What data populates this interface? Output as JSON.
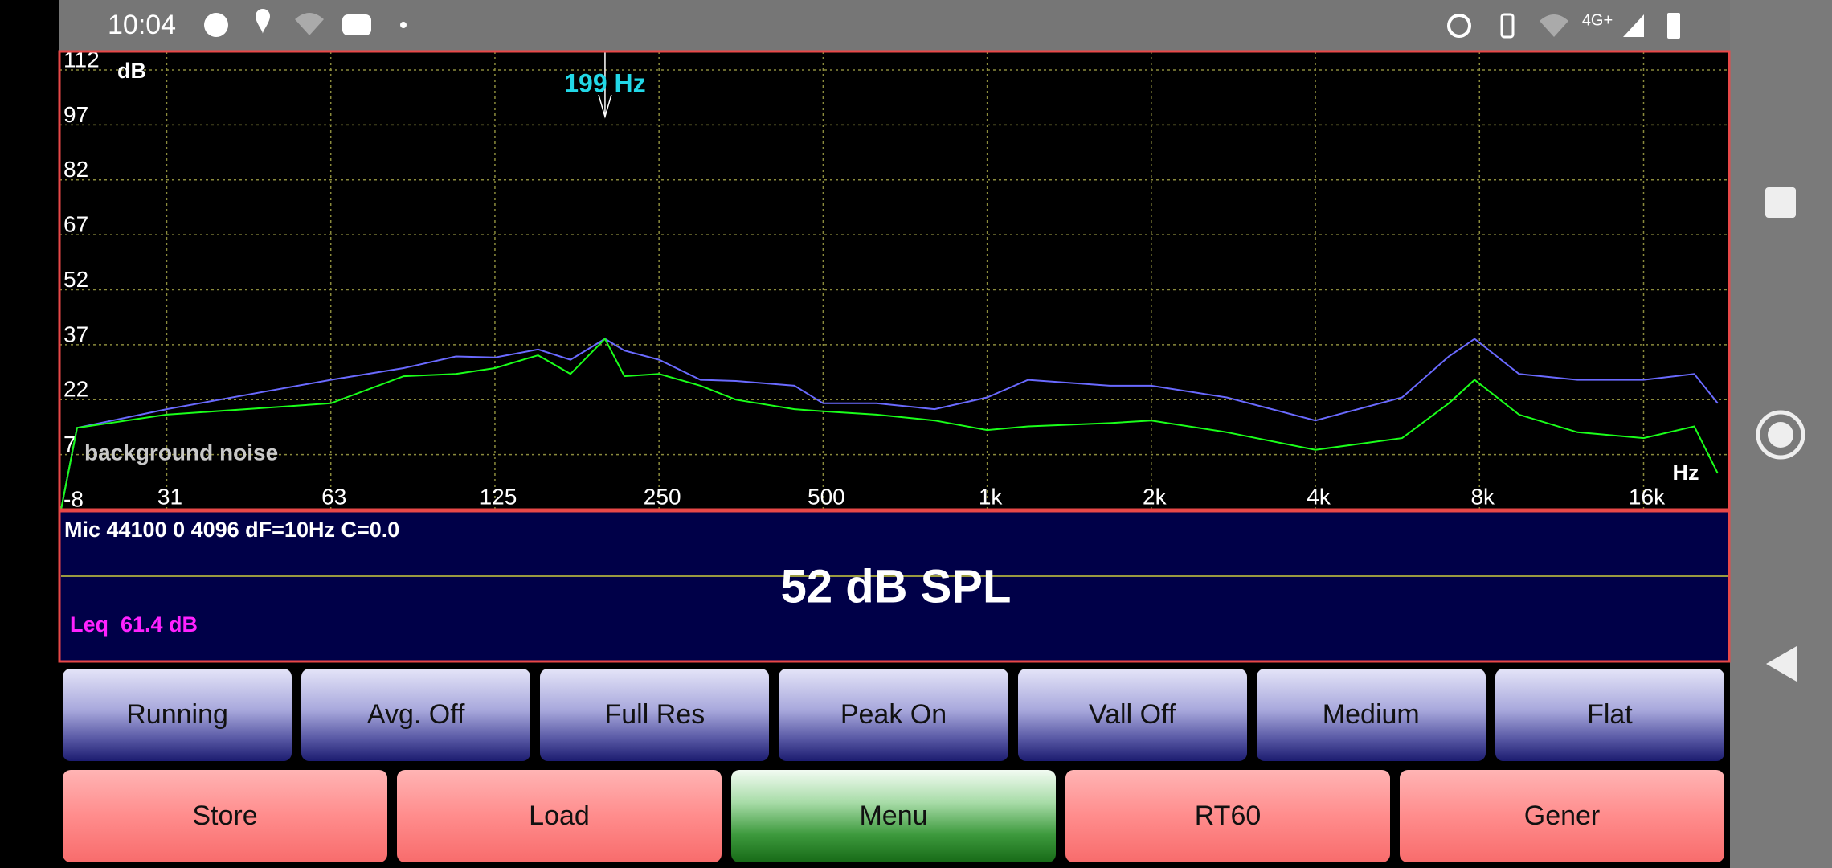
{
  "status_bar": {
    "time": "10:04",
    "network": "4G+"
  },
  "chart_data": {
    "type": "line",
    "x_scale": "log",
    "grid": true,
    "y_unit": "dB",
    "x_unit": "Hz",
    "annotation": "199 Hz",
    "marker_x": 199,
    "note": "background noise",
    "xlim": [
      20,
      22050
    ],
    "ylim": [
      -8,
      112
    ],
    "yticks": [
      112,
      97,
      82,
      67,
      52,
      37,
      22,
      7,
      -8
    ],
    "xticks": [
      {
        "value": 31.25,
        "label": "31"
      },
      {
        "value": 62.5,
        "label": "63"
      },
      125,
      250,
      500,
      {
        "value": 1000,
        "label": "1k"
      },
      {
        "value": 2000,
        "label": "2k"
      },
      {
        "value": 4000,
        "label": "4k"
      },
      {
        "value": 8000,
        "label": "8k"
      },
      {
        "value": 16000,
        "label": "16k"
      }
    ],
    "x": [
      20,
      21.4,
      31.25,
      62.5,
      85,
      106,
      125,
      150,
      172,
      199,
      216,
      250,
      298,
      346,
      443,
      500,
      626,
      801,
      1000,
      1188,
      1679,
      2000,
      2750,
      4000,
      5769,
      7028,
      7837,
      9453,
      12100,
      16000,
      19822,
      21884
    ],
    "series": [
      {
        "color": "#6a6aff",
        "values": [
          -8,
          14.3,
          19.4,
          27.4,
          30.6,
          33.8,
          33.5,
          35.7,
          32.9,
          38.6,
          35.4,
          32.9,
          27.4,
          27.1,
          25.8,
          21.0,
          21.0,
          19.4,
          22.6,
          27.4,
          25.8,
          25.8,
          22.6,
          16.3,
          22.6,
          33.8,
          38.6,
          29.0,
          27.4,
          27.4,
          29.0,
          21.0
        ]
      },
      {
        "color": "#1aff1a",
        "values": [
          -8,
          14.3,
          17.9,
          21.0,
          28.4,
          29.0,
          30.6,
          34.1,
          29.0,
          38.6,
          28.4,
          29.0,
          25.8,
          22.0,
          19.4,
          18.8,
          17.9,
          16.3,
          13.7,
          14.7,
          15.6,
          16.3,
          13.1,
          8.3,
          11.5,
          21.0,
          27.4,
          17.9,
          13.1,
          11.5,
          14.7,
          1.9
        ]
      }
    ]
  },
  "readout": {
    "info": "Mic 44100 0 4096 dF=10Hz C=0.0",
    "level": "52 dB SPL",
    "leq": "Leq  61.4 dB"
  },
  "buttons": {
    "row1": [
      "Running",
      "Avg. Off",
      "Full Res",
      "Peak On",
      "Vall Off",
      "Medium",
      "Flat"
    ],
    "row2": [
      "Store",
      "Load",
      "Menu",
      "RT60",
      "Gener"
    ]
  }
}
